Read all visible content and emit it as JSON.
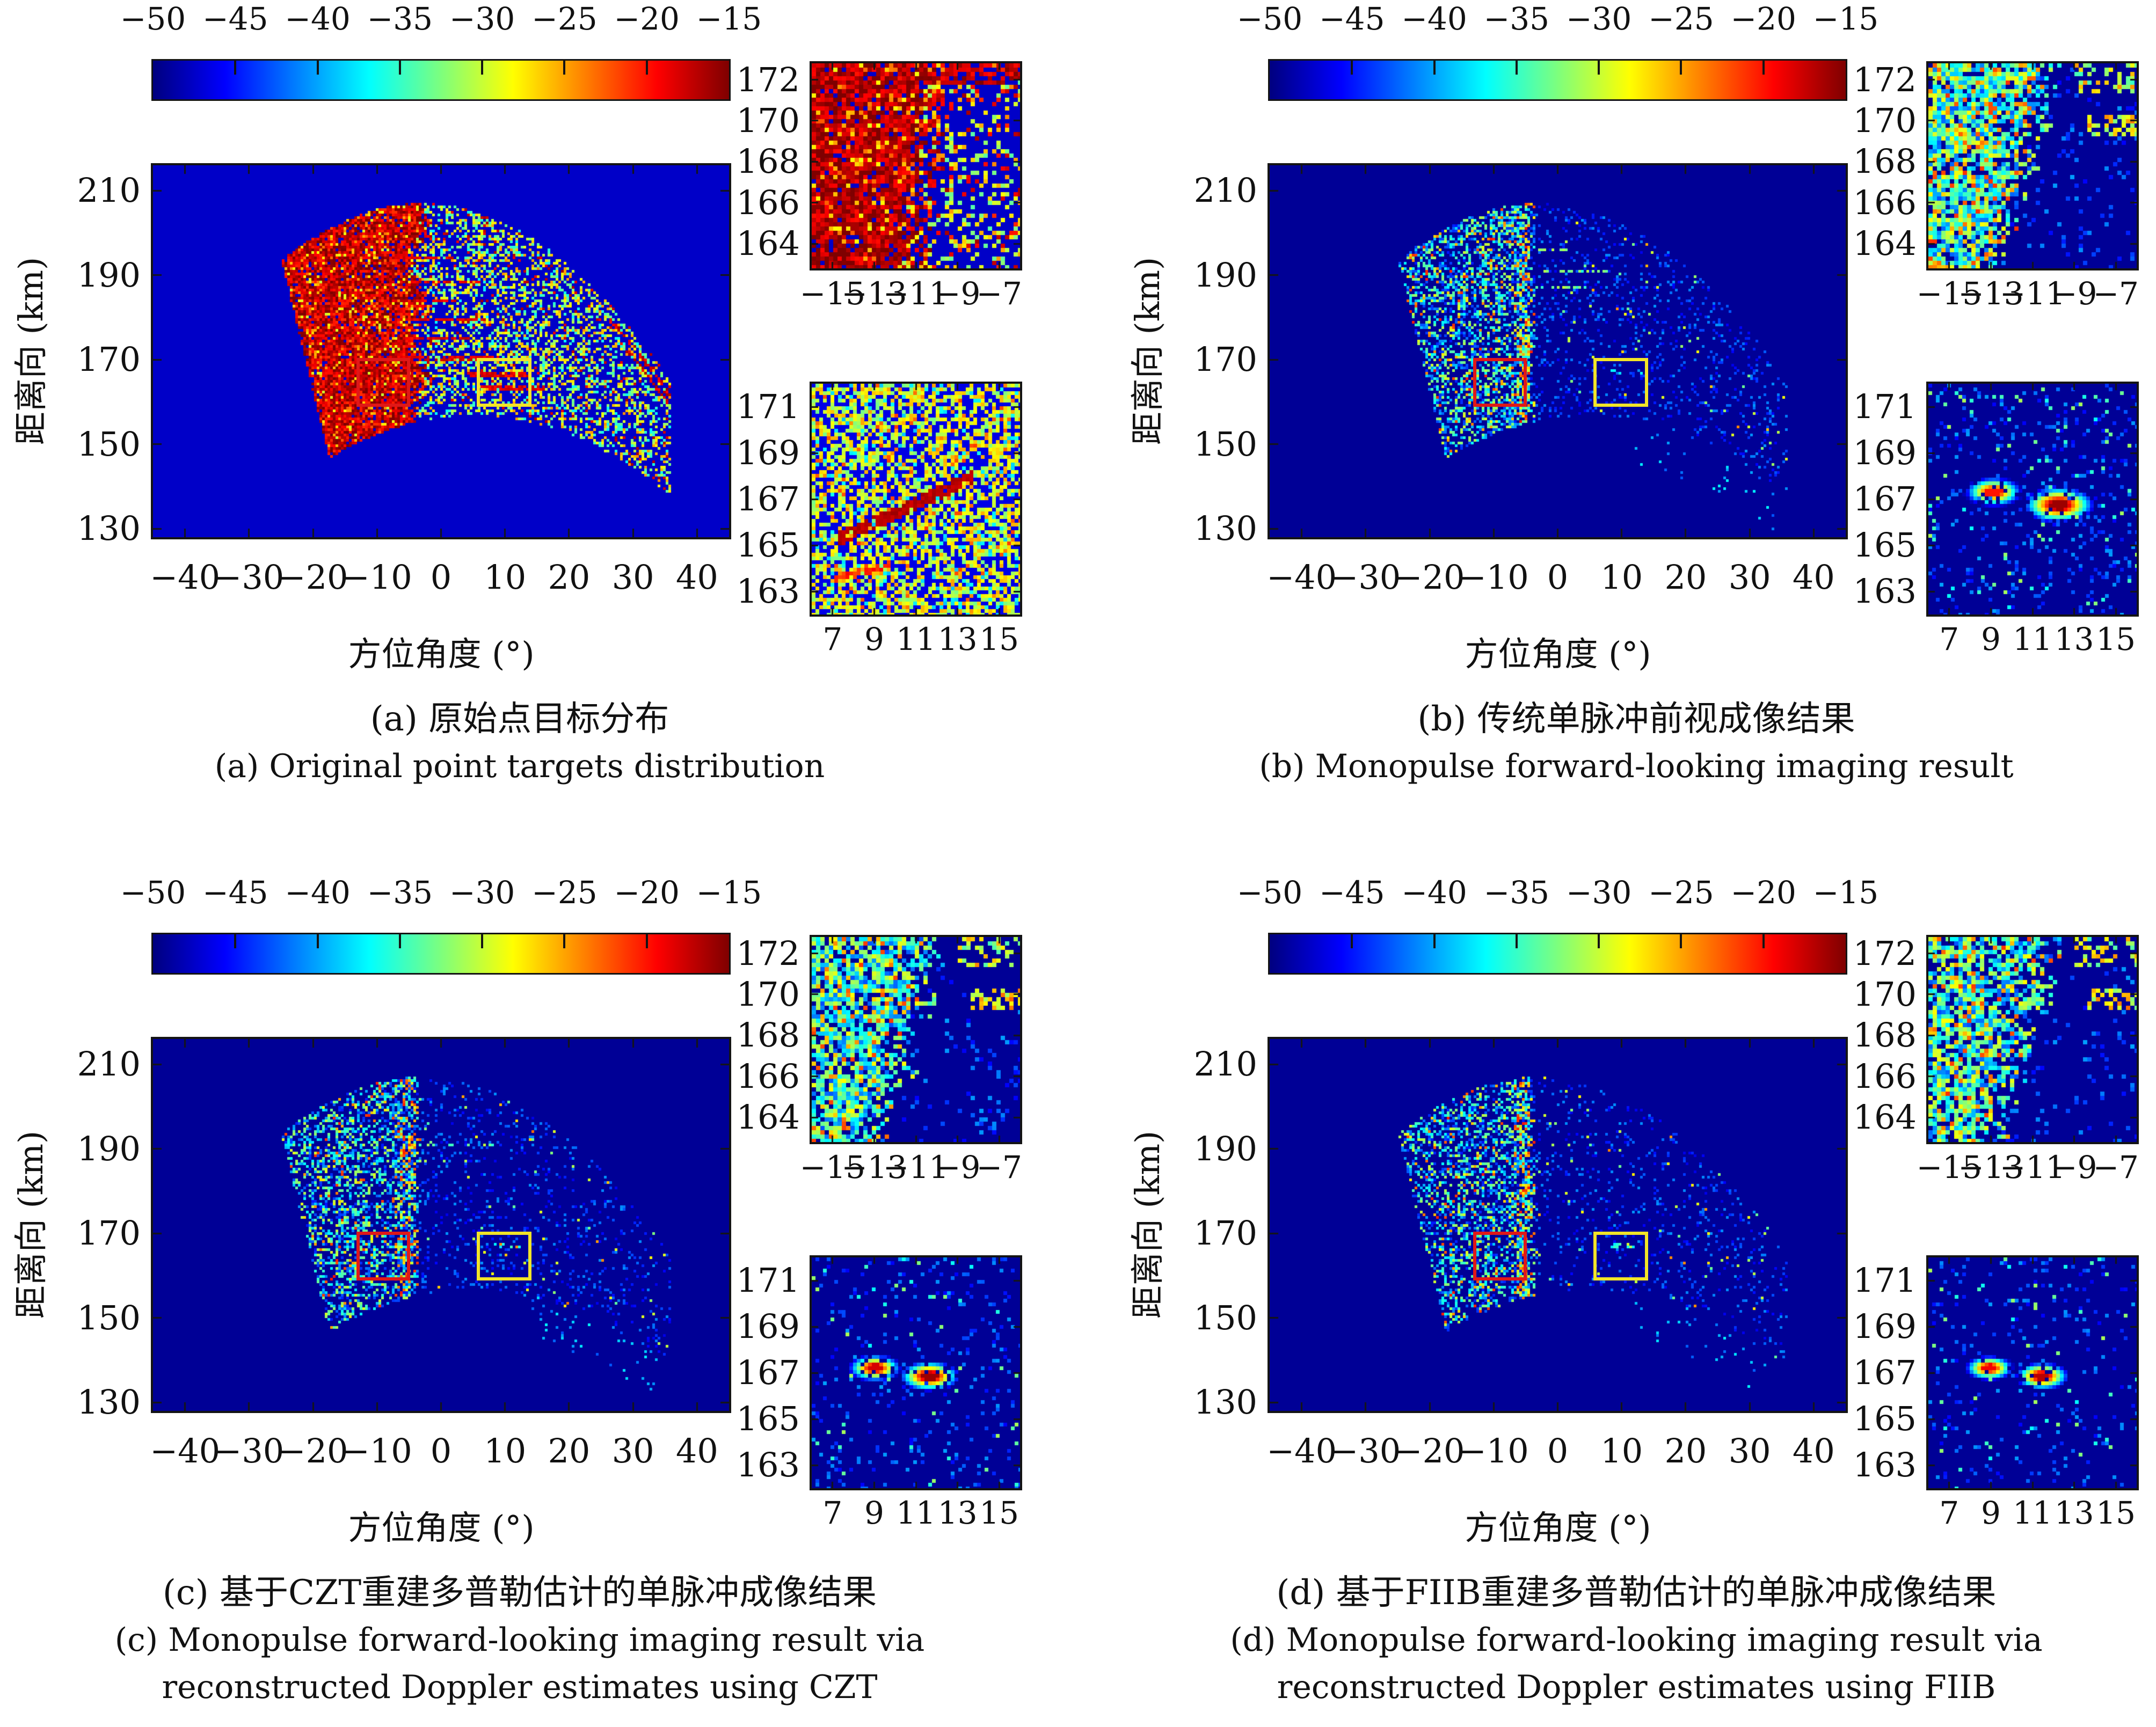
{
  "figure": {
    "kind": "scientific-figure",
    "background": "#ffffff"
  },
  "shared": {
    "colorbar_ticks": [
      "−50",
      "−45",
      "−40",
      "−35",
      "−30",
      "−25",
      "−20",
      "−15"
    ],
    "main_x_ticks": [
      "−40",
      "−30",
      "−20",
      "−10",
      "0",
      "10",
      "20",
      "30",
      "40"
    ],
    "main_y_ticks": [
      "210",
      "190",
      "170",
      "150",
      "130"
    ],
    "x_label": "方位角度 (°)",
    "y_label": "距离向 (km)",
    "inset_top_x_ticks": [
      "−15",
      "−13",
      "−11",
      "−9",
      "−7"
    ],
    "inset_top_y_ticks": [
      "172",
      "170",
      "168",
      "166",
      "164"
    ],
    "inset_bottom_x_ticks": [
      "7",
      "9",
      "11",
      "13",
      "15"
    ],
    "inset_bottom_y_ticks": [
      "171",
      "169",
      "167",
      "165",
      "163"
    ]
  },
  "panels": [
    {
      "id": "a",
      "caption_zh": "(a) 原始点目标分布",
      "caption_en": [
        "(a) Original point targets distribution"
      ]
    },
    {
      "id": "b",
      "caption_zh": "(b) 传统单脉冲前视成像结果",
      "caption_en": [
        "(b) Monopulse forward-looking imaging result"
      ]
    },
    {
      "id": "c",
      "caption_zh": "(c) 基于CZT重建多普勒估计的单脉冲成像结果",
      "caption_en": [
        "(c) Monopulse forward-looking imaging result via",
        "reconstructed Doppler estimates using CZT"
      ]
    },
    {
      "id": "d",
      "caption_zh": "(d) 基于FIIB重建多普勒估计的单脉冲成像结果",
      "caption_en": [
        "(d) Monopulse forward-looking imaging result via",
        "reconstructed Doppler estimates using FIIB"
      ]
    }
  ],
  "chart_data": [
    {
      "panel": "a",
      "type": "heatmap",
      "colormap": "jet",
      "x_axis": {
        "label": "方位角度 (°)",
        "range": [
          -45,
          45
        ],
        "ticks": [
          -40,
          -30,
          -20,
          -10,
          0,
          10,
          20,
          30,
          40
        ]
      },
      "y_axis": {
        "label": "距离向 (km)",
        "range": [
          128,
          216
        ],
        "ticks": [
          130,
          150,
          170,
          190,
          210
        ]
      },
      "colorbar": {
        "range": [
          -50,
          -15
        ],
        "ticks": [
          -50,
          -45,
          -40,
          -35,
          -30,
          -25,
          -20,
          -15
        ]
      },
      "highlight_boxes": [
        {
          "name": "red-box",
          "color": "#e01818",
          "az": [
            -13.0,
            -5.6
          ],
          "range_km": [
            160,
            170
          ]
        },
        {
          "name": "yellow-box",
          "color": "#f2e428",
          "az": [
            5.8,
            13.4
          ],
          "range_km": [
            160,
            170
          ]
        }
      ],
      "inset_top": {
        "x_range": [
          -16,
          -6
        ],
        "y_range": [
          162.8,
          172.8
        ],
        "x_ticks": [
          -15,
          -13,
          -11,
          -9,
          -7
        ],
        "y_ticks": [
          164,
          166,
          168,
          170,
          172
        ]
      },
      "inset_bottom": {
        "x_range": [
          6,
          16
        ],
        "y_range": [
          162,
          172
        ],
        "x_ticks": [
          7,
          9,
          11,
          13,
          15
        ],
        "y_ticks": [
          163,
          165,
          167,
          169,
          171
        ]
      },
      "render": {
        "seed": 11,
        "kind": "original",
        "bg": -47.5,
        "fingers": [
          [
            170.5,
            -6,
            9
          ],
          [
            175,
            -6,
            4
          ],
          [
            179.5,
            -7,
            7
          ],
          [
            184,
            -6,
            3
          ],
          [
            188.5,
            -5,
            6
          ],
          [
            194,
            -8,
            2
          ],
          [
            166.5,
            4,
            14
          ],
          [
            163.5,
            6,
            16
          ]
        ],
        "arcs": [
          [
            205,
            18,
            36
          ],
          [
            199,
            20,
            36
          ],
          [
            193,
            22,
            36
          ],
          [
            187,
            24,
            36
          ],
          [
            180,
            26,
            36
          ],
          [
            174,
            28,
            36
          ]
        ],
        "inset_top_cfg": {
          "kind": "original"
        },
        "inset_bottom_cfg": {
          "kind": "original",
          "streak": [
            165.2,
            0.42
          ],
          "streak2": [
            163.6,
            0.25
          ]
        }
      }
    },
    {
      "panel": "b",
      "type": "heatmap",
      "colormap": "jet",
      "x_axis": {
        "label": "方位角度 (°)",
        "range": [
          -45,
          45
        ],
        "ticks": [
          -40,
          -30,
          -20,
          -10,
          0,
          10,
          20,
          30,
          40
        ]
      },
      "y_axis": {
        "label": "距离向 (km)",
        "range": [
          128,
          216
        ],
        "ticks": [
          130,
          150,
          170,
          190,
          210
        ]
      },
      "colorbar": {
        "range": [
          -50,
          -15
        ],
        "ticks": [
          -50,
          -45,
          -40,
          -35,
          -30,
          -25,
          -20,
          -15
        ]
      },
      "highlight_boxes": [
        {
          "name": "red-box",
          "color": "#e01818",
          "az": [
            -13.0,
            -5.6
          ],
          "range_km": [
            160,
            170
          ]
        },
        {
          "name": "yellow-box",
          "color": "#f2e428",
          "az": [
            5.8,
            13.4
          ],
          "range_km": [
            160,
            170
          ]
        }
      ],
      "inset_top": {
        "x_range": [
          -16,
          -6
        ],
        "y_range": [
          162.8,
          172.8
        ],
        "x_ticks": [
          -15,
          -13,
          -11,
          -9,
          -7
        ],
        "y_ticks": [
          164,
          166,
          168,
          170,
          172
        ]
      },
      "inset_bottom": {
        "x_range": [
          6,
          16
        ],
        "y_range": [
          162,
          172
        ],
        "x_ticks": [
          7,
          9,
          11,
          13,
          15
        ],
        "y_ticks": [
          163,
          165,
          167,
          169,
          171
        ]
      },
      "targets": [
        [
          9.1,
          167.35
        ],
        [
          12.2,
          166.8
        ]
      ],
      "render": {
        "seed": 22,
        "kind": "mono",
        "bg": -49.2,
        "fill": 0.5,
        "rfill": 0.14,
        "hot": 0.1,
        "streaks": 0.5,
        "inset_top_cfg": {
          "kind": "mono",
          "fill": 0.85,
          "orange": 0.16
        },
        "inset_bottom_cfg": {
          "kind": "mono",
          "sp": 0.13,
          "blobs": [
            [
              9.1,
              167.35,
              0.68,
              0.32,
              -20
            ],
            [
              12.2,
              166.8,
              0.78,
              0.36,
              -16
            ]
          ]
        }
      }
    },
    {
      "panel": "c",
      "type": "heatmap",
      "colormap": "jet",
      "x_axis": {
        "label": "方位角度 (°)",
        "range": [
          -45,
          45
        ],
        "ticks": [
          -40,
          -30,
          -20,
          -10,
          0,
          10,
          20,
          30,
          40
        ]
      },
      "y_axis": {
        "label": "距离向 (km)",
        "range": [
          128,
          216
        ],
        "ticks": [
          130,
          150,
          170,
          190,
          210
        ]
      },
      "colorbar": {
        "range": [
          -50,
          -15
        ],
        "ticks": [
          -50,
          -45,
          -40,
          -35,
          -30,
          -25,
          -20,
          -15
        ]
      },
      "highlight_boxes": [
        {
          "name": "red-box",
          "color": "#e01818",
          "az": [
            -13.0,
            -5.6
          ],
          "range_km": [
            160,
            170
          ]
        },
        {
          "name": "yellow-box",
          "color": "#f2e428",
          "az": [
            5.8,
            13.4
          ],
          "range_km": [
            160,
            170
          ]
        }
      ],
      "inset_top": {
        "x_range": [
          -16,
          -6
        ],
        "y_range": [
          162.8,
          172.8
        ],
        "x_ticks": [
          -15,
          -13,
          -11,
          -9,
          -7
        ],
        "y_ticks": [
          164,
          166,
          168,
          170,
          172
        ]
      },
      "inset_bottom": {
        "x_range": [
          6,
          16
        ],
        "y_range": [
          162,
          172
        ],
        "x_ticks": [
          7,
          9,
          11,
          13,
          15
        ],
        "y_ticks": [
          163,
          165,
          167,
          169,
          171
        ]
      },
      "targets": [
        [
          9.0,
          167.25
        ],
        [
          11.6,
          166.9
        ]
      ],
      "render": {
        "seed": 33,
        "kind": "mono",
        "bg": -49.2,
        "fill": 0.45,
        "rfill": 0.11,
        "hot": 0.08,
        "streaks": 0.25,
        "inset_top_cfg": {
          "kind": "mono",
          "fill": 0.8,
          "orange": 0.12
        },
        "inset_bottom_cfg": {
          "kind": "mono",
          "sp": 0.1,
          "blobs": [
            [
              9.0,
              167.25,
              0.6,
              0.28,
              -18
            ],
            [
              11.6,
              166.9,
              0.66,
              0.3,
              -16
            ]
          ]
        }
      }
    },
    {
      "panel": "d",
      "type": "heatmap",
      "colormap": "jet",
      "x_axis": {
        "label": "方位角度 (°)",
        "range": [
          -45,
          45
        ],
        "ticks": [
          -40,
          -30,
          -20,
          -10,
          0,
          10,
          20,
          30,
          40
        ]
      },
      "y_axis": {
        "label": "距离向 (km)",
        "range": [
          128,
          216
        ],
        "ticks": [
          130,
          150,
          170,
          190,
          210
        ]
      },
      "colorbar": {
        "range": [
          -50,
          -15
        ],
        "ticks": [
          -50,
          -45,
          -40,
          -35,
          -30,
          -25,
          -20,
          -15
        ]
      },
      "highlight_boxes": [
        {
          "name": "red-box",
          "color": "#e01818",
          "az": [
            -13.0,
            -5.6
          ],
          "range_km": [
            160,
            170
          ]
        },
        {
          "name": "yellow-box",
          "color": "#f2e428",
          "az": [
            5.8,
            13.4
          ],
          "range_km": [
            160,
            170
          ]
        }
      ],
      "inset_top": {
        "x_range": [
          -16,
          -6
        ],
        "y_range": [
          162.8,
          172.8
        ],
        "x_ticks": [
          -15,
          -13,
          -11,
          -9,
          -7
        ],
        "y_ticks": [
          164,
          166,
          168,
          170,
          172
        ]
      },
      "inset_bottom": {
        "x_range": [
          6,
          16
        ],
        "y_range": [
          162,
          172
        ],
        "x_ticks": [
          7,
          9,
          11,
          13,
          15
        ],
        "y_ticks": [
          163,
          165,
          167,
          169,
          171
        ]
      },
      "targets": [
        [
          8.9,
          167.25
        ],
        [
          11.4,
          166.9
        ]
      ],
      "render": {
        "seed": 44,
        "kind": "mono",
        "bg": -49.2,
        "fill": 0.42,
        "rfill": 0.09,
        "hot": 0.08,
        "streaks": 0.2,
        "inset_top_cfg": {
          "kind": "mono",
          "fill": 0.78,
          "orange": 0.12
        },
        "inset_bottom_cfg": {
          "kind": "mono",
          "sp": 0.08,
          "blobs": [
            [
              8.9,
              167.25,
              0.56,
              0.26,
              -19
            ],
            [
              11.4,
              166.9,
              0.6,
              0.28,
              -17
            ]
          ]
        }
      }
    }
  ]
}
